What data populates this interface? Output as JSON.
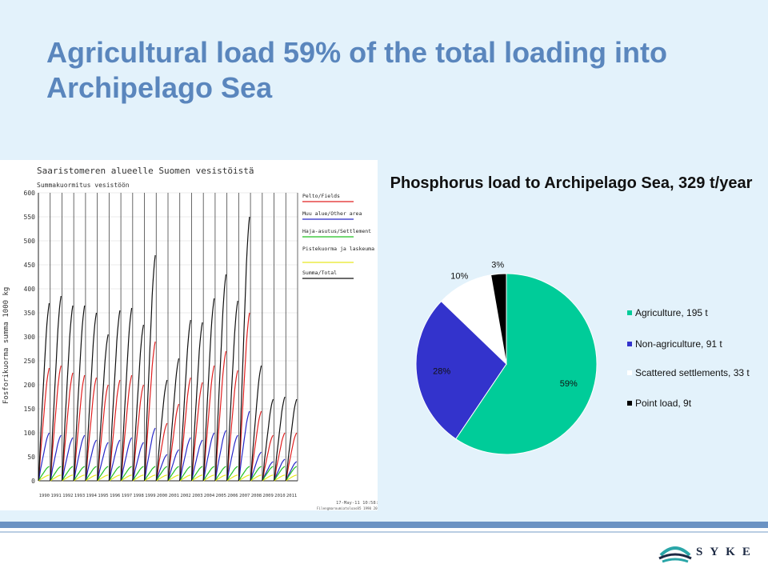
{
  "slide": {
    "title": "Agricultural load 59% of the total loading into Archipelago Sea",
    "logo_text": "SYKE"
  },
  "colors": {
    "background": "#e3f2fb",
    "title": "#5a86bd",
    "footer_bar": "#6b93c3"
  },
  "chart_data": [
    {
      "type": "line",
      "title": "Saaristomeren alueelle Suomen vesistöistä",
      "subtitle": "Summakuormitus vesistöön",
      "ylabel": "Fosforikuorma summa 1000 kg",
      "xlabel": "",
      "ylim": [
        0,
        600
      ],
      "y_ticks": [
        "0",
        "50",
        "100",
        "150",
        "200",
        "250",
        "300",
        "350",
        "400",
        "450",
        "500",
        "550",
        "600"
      ],
      "x_ticks": [
        "1990",
        "1991",
        "1992",
        "1993",
        "1994",
        "1995",
        "1996",
        "1997",
        "1998",
        "1999",
        "2000",
        "2001",
        "2002",
        "2003",
        "2004",
        "2005",
        "2006",
        "2007",
        "2008",
        "2009",
        "2010",
        "2011"
      ],
      "grid": true,
      "legend_position": "right",
      "timestamp": "17-May-11 10:58:54",
      "footnote": "Filengmaroumiatoloas85 1990 2011.ws",
      "series": [
        {
          "name": "Pelto/Fields",
          "color": "#e02020",
          "values": [
            235,
            240,
            225,
            220,
            215,
            200,
            210,
            220,
            200,
            290,
            120,
            160,
            215,
            205,
            240,
            270,
            230,
            350,
            145,
            95,
            100,
            100
          ]
        },
        {
          "name": "Muu alue/Other area",
          "color": "#2828c8",
          "values": [
            100,
            95,
            90,
            95,
            85,
            80,
            85,
            90,
            80,
            110,
            55,
            65,
            90,
            85,
            100,
            105,
            95,
            145,
            60,
            40,
            45,
            40
          ]
        },
        {
          "name": "Haja-asutus/Settlement",
          "color": "#22c022",
          "values": [
            30,
            30,
            30,
            30,
            30,
            30,
            30,
            30,
            30,
            30,
            30,
            30,
            30,
            30,
            30,
            30,
            30,
            30,
            30,
            30,
            30,
            30
          ]
        },
        {
          "name": "Pistekuorma ja laskeuma",
          "color": "#e8e820",
          "values": [
            12,
            12,
            12,
            12,
            12,
            12,
            12,
            12,
            12,
            12,
            12,
            12,
            12,
            12,
            12,
            12,
            12,
            12,
            12,
            12,
            12,
            12
          ]
        },
        {
          "name": "Summa/Total",
          "color": "#111111",
          "values": [
            370,
            385,
            365,
            365,
            350,
            305,
            355,
            360,
            325,
            470,
            210,
            255,
            335,
            330,
            380,
            430,
            375,
            550,
            240,
            170,
            175,
            170
          ]
        }
      ]
    },
    {
      "type": "pie",
      "title": "Phosphorus load to Archipelago Sea, 329 t/year",
      "start_angle_deg": 0,
      "slices": [
        {
          "name": "Agriculture, 195 t",
          "value": 195,
          "label": "59%",
          "color": "#00cc99"
        },
        {
          "name": "Non-agriculture, 91 t",
          "value": 91,
          "label": "28%",
          "color": "#3333cc"
        },
        {
          "name": "Scattered settlements, 33 t",
          "value": 33,
          "label": "10%",
          "color": "#ffffff"
        },
        {
          "name": "Point load, 9t",
          "value": 9,
          "label": "3%",
          "color": "#000000"
        }
      ],
      "legend_position": "right"
    }
  ]
}
